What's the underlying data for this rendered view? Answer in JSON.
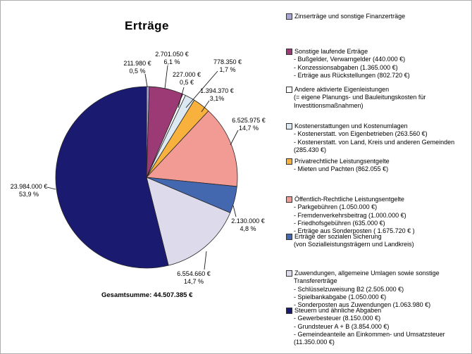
{
  "chart_data": {
    "type": "pie",
    "title": "Erträge",
    "total_label": "Gesamtsumme: 44.507.385 €",
    "legend_position": "right",
    "grid": false,
    "slices": [
      {
        "name": "Zinserträge und sonstige Finanzerträge",
        "value": 211980,
        "value_label": "211.980 €",
        "pct_label": "0,5 %",
        "color": "#A8A6D8"
      },
      {
        "name": "Sonstige laufende Erträge",
        "value": 2701050,
        "value_label": "2.701.050 €",
        "pct_label": "6,1 %",
        "color": "#9B3A74"
      },
      {
        "name": "Andere aktivierte Eigenleistungen",
        "value": 227000,
        "value_label": "227.000 €",
        "pct_label": "0,5 €",
        "color": "#FFFFFF"
      },
      {
        "name": "Kostenerstattungen und Kostenumlagen",
        "value": 778350,
        "value_label": "778.350 €",
        "pct_label": "1,7 %",
        "color": "#DCE9F2"
      },
      {
        "name": "Privatrechtliche Leistungsentgelte",
        "value": 1394370,
        "value_label": "1.394.370 €",
        "pct_label": "3,1%",
        "color": "#F8B13D"
      },
      {
        "name": "Öffentlich-Rechtliche Leistungsentgelte",
        "value": 6525975,
        "value_label": "6.525.975 €",
        "pct_label": "14,7 %",
        "color": "#F29B95"
      },
      {
        "name": "Erträge der sozialen Sicherung",
        "value": 2130000,
        "value_label": "2.130.000 €",
        "pct_label": "4,8 %",
        "color": "#4368B0"
      },
      {
        "name": "Zuwendungen, allgemeine Umlagen sowie sonstige Transfererträge",
        "value": 6554660,
        "value_label": "6.554.660 €",
        "pct_label": "14,7 %",
        "color": "#DDDAEC"
      },
      {
        "name": "Steuern und ähnliche Abgaben",
        "value": 23984000,
        "value_label": "23.984.000 €",
        "pct_label": "53,9 %",
        "color": "#1A1A70"
      }
    ]
  },
  "legend": {
    "items": [
      {
        "color": "#A8A6D8",
        "title_lines": [
          "Zinserträge und sonstige Finanzerträge"
        ],
        "sub_lines": []
      },
      {
        "color": "#9B3A74",
        "title_lines": [
          "Sonstige laufende Erträge"
        ],
        "sub_lines": [
          "- Bußgelder, Verwarngelder (440.000 €)",
          "- Konzessionsabgaben (1.365.000 €)",
          "- Erträge aus Rückstellungen (802.720 €)"
        ]
      },
      {
        "color": "#FFFFFF",
        "title_lines": [
          "Andere aktivierte Eigenleistungen",
          "(= eigene Planungs- und Bauleitungskosten für",
          "Investitionsmaßnahmen)"
        ],
        "sub_lines": []
      },
      {
        "color": "#DCE9F2",
        "title_lines": [
          "Kostenerstattungen und Kostenumlagen"
        ],
        "sub_lines": [
          "- Kostenerstatt. von Eigenbetrieben (263.560 €)",
          "- Kostenerstatt. von Land, Kreis und anderen Gemeinden",
          "(285.430 €)"
        ]
      },
      {
        "color": "#F8B13D",
        "title_lines": [
          "Privatrechtliche Leistungsentgelte"
        ],
        "sub_lines": [
          "- Mieten und Pachten (862.055 €)"
        ]
      },
      {
        "color": "#F29B95",
        "title_lines": [
          "Öffentlich-Rechtliche Leistungsentgelte"
        ],
        "sub_lines": [
          "- Parkgebühren (1.050.000 €)",
          "- Fremdenverkehrsbeitrag (1.000.000 €)",
          "- Friedhofsgebühren (635.000 €)",
          "- Erträge aus Sonderposten ( 1.675.720 € )"
        ]
      },
      {
        "color": "#4368B0",
        "title_lines": [
          "Erträge der sozialen Sicherung",
          "(von Sozialleistungsträgern und Landkreis)"
        ],
        "sub_lines": []
      },
      {
        "color": "#DDDAEC",
        "title_lines": [
          "Zuwendungen, allgemeine Umlagen sowie sonstige",
          "Transfererträge"
        ],
        "sub_lines": [
          "- Schlüsselzuweisung B2 (2.505.000 €)",
          "- Spielbankabgabe (1.050.000 €)",
          "- Sonderposten aus Zuwendungen (1.063.980 €)"
        ]
      },
      {
        "color": "#1A1A70",
        "title_lines": [
          "Steuern und ähnliche Abgaben"
        ],
        "sub_lines": [
          "- Gewerbesteuer (8.150.000 €)",
          "- Grundsteuer A + B (3.854.000 €)",
          "- Gemeindeanteile an Einkommen- und Umsatzsteuer",
          "(11.350.000 €)"
        ]
      }
    ]
  }
}
